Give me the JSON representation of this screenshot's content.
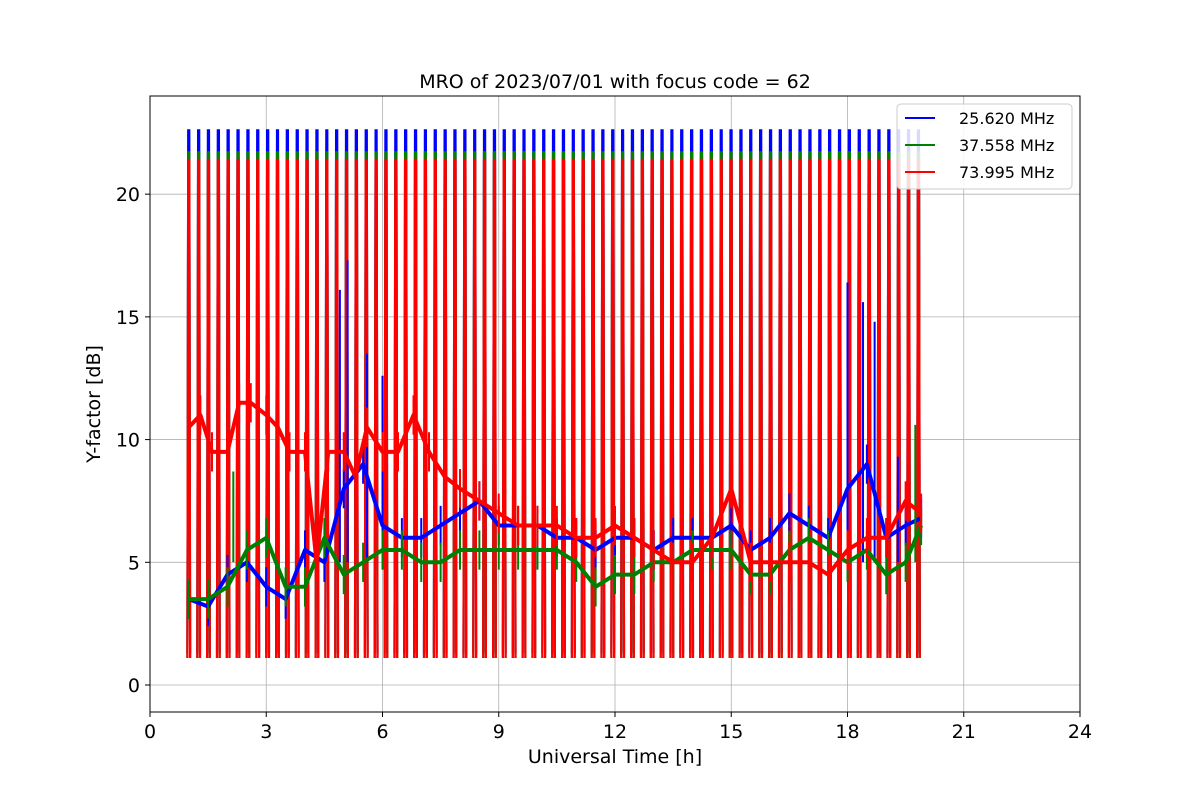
{
  "chart_data": {
    "type": "line",
    "title": "MRO of 2023/07/01 with focus code = 62",
    "xlabel": "Universal Time [h]",
    "ylabel": "Y-factor [dB]",
    "xlim": [
      0,
      24
    ],
    "ylim": [
      -1.1,
      24
    ],
    "xticks": [
      0,
      3,
      6,
      9,
      12,
      15,
      18,
      21,
      24
    ],
    "yticks": [
      0,
      5,
      10,
      15,
      20
    ],
    "grid": true,
    "legend_position": "top-right",
    "calibration_pulses": {
      "start": 1.0,
      "end": 19.83,
      "count": 75,
      "peaks_dB": {
        "25.620 MHz": 22.6,
        "37.558 MHz": 21.7,
        "73.995 MHz": 21.4
      },
      "floor_dB": {
        "25.620 MHz": 1.3,
        "37.558 MHz": 1.1,
        "73.995 MHz": 1.1
      }
    },
    "series": [
      {
        "name": "25.620 MHz",
        "color": "#0000ff",
        "x": [
          1.0,
          1.5,
          2.0,
          2.5,
          3.0,
          3.5,
          4.0,
          4.5,
          5.0,
          5.5,
          6.0,
          6.5,
          7.0,
          7.5,
          8.0,
          8.5,
          9.0,
          9.5,
          10.0,
          10.5,
          11.0,
          11.5,
          12.0,
          12.5,
          13.0,
          13.5,
          14.0,
          14.5,
          15.0,
          15.5,
          16.0,
          16.5,
          17.0,
          17.5,
          18.0,
          18.5,
          19.0,
          19.5,
          19.9
        ],
        "y": [
          3.5,
          3.2,
          4.5,
          5.0,
          4.0,
          3.5,
          5.5,
          5.0,
          8.0,
          9.0,
          6.5,
          6.0,
          6.0,
          6.5,
          7.0,
          7.5,
          6.5,
          6.5,
          6.5,
          6.0,
          6.0,
          5.5,
          6.0,
          6.0,
          5.5,
          6.0,
          6.0,
          6.0,
          6.5,
          5.5,
          6.0,
          7.0,
          6.5,
          6.0,
          8.0,
          9.0,
          6.0,
          6.5,
          6.8
        ],
        "spike_heights": [
          {
            "x": 4.9,
            "y": 16.1
          },
          {
            "x": 5.1,
            "y": 17.3
          },
          {
            "x": 5.6,
            "y": 13.5
          },
          {
            "x": 6.0,
            "y": 12.6
          },
          {
            "x": 18.0,
            "y": 16.4
          },
          {
            "x": 18.4,
            "y": 15.6
          },
          {
            "x": 18.7,
            "y": 14.8
          },
          {
            "x": 19.3,
            "y": 9.3
          }
        ]
      },
      {
        "name": "37.558 MHz",
        "color": "#008000",
        "x": [
          1.0,
          1.5,
          2.0,
          2.5,
          3.0,
          3.5,
          4.0,
          4.5,
          5.0,
          5.5,
          6.0,
          6.5,
          7.0,
          7.5,
          8.0,
          8.5,
          9.0,
          9.5,
          10.0,
          10.5,
          11.0,
          11.5,
          12.0,
          12.5,
          13.0,
          13.5,
          14.0,
          14.5,
          15.0,
          15.5,
          16.0,
          16.5,
          17.0,
          17.5,
          18.0,
          18.5,
          19.0,
          19.5,
          19.9
        ],
        "y": [
          3.5,
          3.5,
          4.0,
          5.5,
          6.0,
          4.0,
          4.0,
          6.0,
          4.5,
          5.0,
          5.5,
          5.5,
          5.0,
          5.0,
          5.5,
          5.5,
          5.5,
          5.5,
          5.5,
          5.5,
          5.0,
          4.0,
          4.5,
          4.5,
          5.0,
          5.0,
          5.5,
          5.5,
          5.5,
          4.5,
          4.5,
          5.5,
          6.0,
          5.5,
          5.0,
          5.5,
          4.5,
          5.0,
          6.5
        ],
        "spike_heights": [
          {
            "x": 2.15,
            "y": 8.7
          },
          {
            "x": 19.75,
            "y": 10.6
          }
        ]
      },
      {
        "name": "73.995 MHz",
        "color": "#ff0000",
        "x": [
          1.0,
          1.3,
          1.6,
          2.0,
          2.3,
          2.6,
          3.0,
          3.3,
          3.6,
          4.0,
          4.3,
          4.6,
          5.0,
          5.3,
          5.6,
          6.0,
          6.4,
          6.8,
          7.2,
          7.6,
          8.0,
          8.5,
          9.0,
          9.5,
          10.0,
          10.5,
          11.0,
          11.5,
          12.0,
          12.5,
          13.0,
          13.5,
          14.0,
          14.5,
          15.0,
          15.5,
          16.0,
          16.5,
          17.0,
          17.5,
          18.0,
          18.5,
          19.0,
          19.5,
          19.9
        ],
        "y": [
          10.5,
          11.0,
          9.5,
          9.5,
          11.5,
          11.5,
          11.0,
          10.5,
          9.5,
          9.5,
          5.0,
          9.5,
          9.5,
          8.5,
          10.5,
          9.5,
          9.5,
          11.0,
          9.5,
          8.5,
          8.0,
          7.5,
          7.0,
          6.5,
          6.5,
          6.5,
          6.0,
          6.0,
          6.5,
          6.0,
          5.5,
          5.0,
          5.0,
          6.0,
          8.0,
          5.0,
          5.0,
          5.0,
          5.0,
          4.5,
          5.5,
          6.0,
          6.0,
          7.5,
          7.0
        ]
      }
    ]
  }
}
